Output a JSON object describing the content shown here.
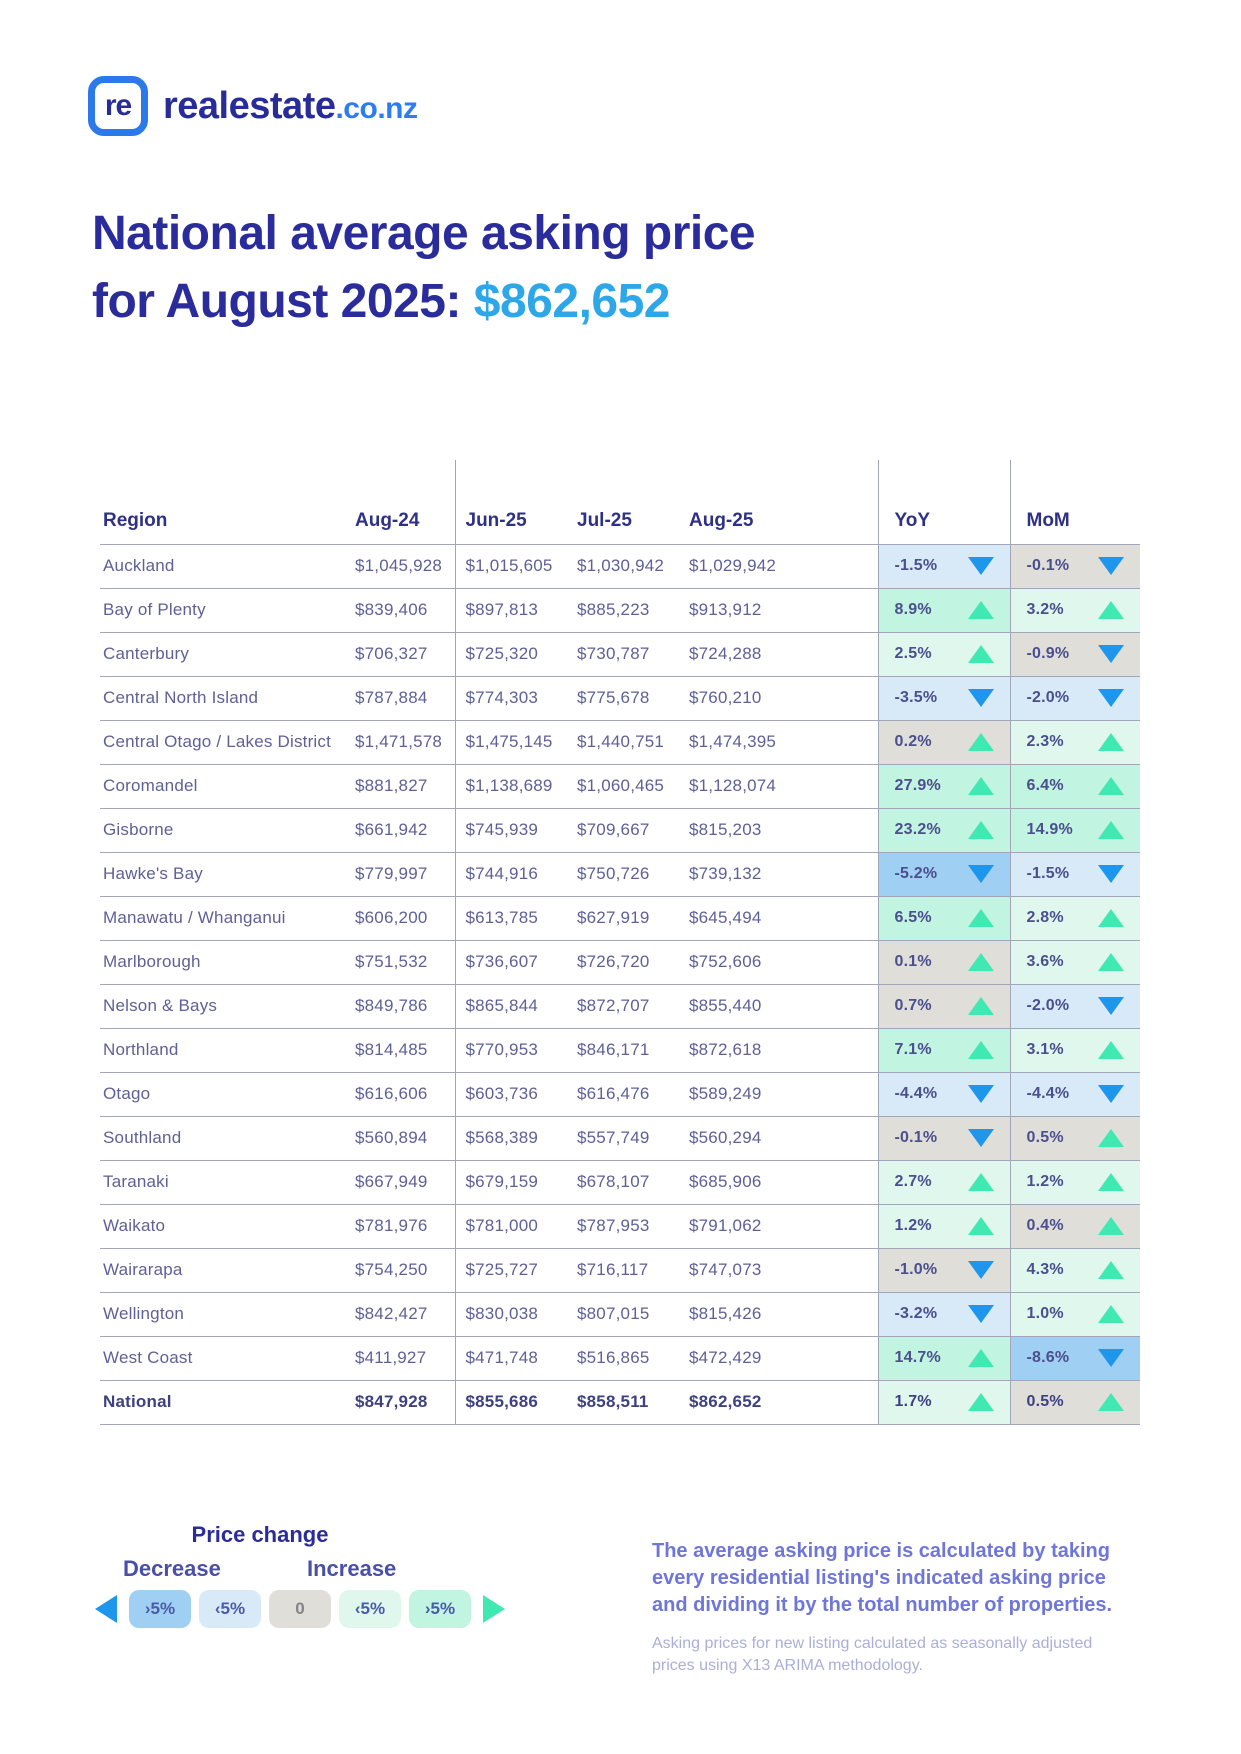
{
  "logo": {
    "mark": "re",
    "name": "realestate",
    "tld": ".co.nz"
  },
  "title": {
    "line1": "National average asking price",
    "line2_prefix": "for August 2025: ",
    "price": "$862,652"
  },
  "chart_data": {
    "type": "table",
    "title": "National average asking price for August 2025: $862,652",
    "columns": [
      "Region",
      "Aug-24",
      "Jun-25",
      "Jul-25",
      "Aug-25",
      "YoY",
      "MoM"
    ],
    "rows": [
      {
        "region": "Auckland",
        "aug24": "$1,045,928",
        "jun25": "$1,015,605",
        "jul25": "$1,030,942",
        "aug25": "$1,029,942",
        "yoy": {
          "value": "-1.5%",
          "dir": "down",
          "band": "dec-light"
        },
        "mom": {
          "value": "-0.1%",
          "dir": "down",
          "band": "zero"
        }
      },
      {
        "region": "Bay of Plenty",
        "aug24": "$839,406",
        "jun25": "$897,813",
        "jul25": "$885,223",
        "aug25": "$913,912",
        "yoy": {
          "value": "8.9%",
          "dir": "up",
          "band": "inc-strong"
        },
        "mom": {
          "value": "3.2%",
          "dir": "up",
          "band": "inc-light"
        }
      },
      {
        "region": "Canterbury",
        "aug24": "$706,327",
        "jun25": "$725,320",
        "jul25": "$730,787",
        "aug25": "$724,288",
        "yoy": {
          "value": "2.5%",
          "dir": "up",
          "band": "inc-light"
        },
        "mom": {
          "value": "-0.9%",
          "dir": "down",
          "band": "zero"
        }
      },
      {
        "region": "Central North Island",
        "aug24": "$787,884",
        "jun25": "$774,303",
        "jul25": "$775,678",
        "aug25": "$760,210",
        "yoy": {
          "value": "-3.5%",
          "dir": "down",
          "band": "dec-light"
        },
        "mom": {
          "value": "-2.0%",
          "dir": "down",
          "band": "dec-light"
        }
      },
      {
        "region": "Central Otago / Lakes District",
        "aug24": "$1,471,578",
        "jun25": "$1,475,145",
        "jul25": "$1,440,751",
        "aug25": "$1,474,395",
        "yoy": {
          "value": "0.2%",
          "dir": "up",
          "band": "zero"
        },
        "mom": {
          "value": "2.3%",
          "dir": "up",
          "band": "inc-light"
        }
      },
      {
        "region": "Coromandel",
        "aug24": "$881,827",
        "jun25": "$1,138,689",
        "jul25": "$1,060,465",
        "aug25": "$1,128,074",
        "yoy": {
          "value": "27.9%",
          "dir": "up",
          "band": "inc-strong"
        },
        "mom": {
          "value": "6.4%",
          "dir": "up",
          "band": "inc-strong"
        }
      },
      {
        "region": "Gisborne",
        "aug24": "$661,942",
        "jun25": "$745,939",
        "jul25": "$709,667",
        "aug25": "$815,203",
        "yoy": {
          "value": "23.2%",
          "dir": "up",
          "band": "inc-strong"
        },
        "mom": {
          "value": "14.9%",
          "dir": "up",
          "band": "inc-strong"
        }
      },
      {
        "region": "Hawke's Bay",
        "aug24": "$779,997",
        "jun25": "$744,916",
        "jul25": "$750,726",
        "aug25": "$739,132",
        "yoy": {
          "value": "-5.2%",
          "dir": "down",
          "band": "dec-strong"
        },
        "mom": {
          "value": "-1.5%",
          "dir": "down",
          "band": "dec-light"
        }
      },
      {
        "region": "Manawatu / Whanganui",
        "aug24": "$606,200",
        "jun25": "$613,785",
        "jul25": "$627,919",
        "aug25": "$645,494",
        "yoy": {
          "value": "6.5%",
          "dir": "up",
          "band": "inc-strong"
        },
        "mom": {
          "value": "2.8%",
          "dir": "up",
          "band": "inc-light"
        }
      },
      {
        "region": "Marlborough",
        "aug24": "$751,532",
        "jun25": "$736,607",
        "jul25": "$726,720",
        "aug25": "$752,606",
        "yoy": {
          "value": "0.1%",
          "dir": "up",
          "band": "zero"
        },
        "mom": {
          "value": "3.6%",
          "dir": "up",
          "band": "inc-light"
        }
      },
      {
        "region": "Nelson & Bays",
        "aug24": "$849,786",
        "jun25": "$865,844",
        "jul25": "$872,707",
        "aug25": "$855,440",
        "yoy": {
          "value": "0.7%",
          "dir": "up",
          "band": "zero"
        },
        "mom": {
          "value": "-2.0%",
          "dir": "down",
          "band": "dec-light"
        }
      },
      {
        "region": "Northland",
        "aug24": "$814,485",
        "jun25": "$770,953",
        "jul25": "$846,171",
        "aug25": "$872,618",
        "yoy": {
          "value": "7.1%",
          "dir": "up",
          "band": "inc-strong"
        },
        "mom": {
          "value": "3.1%",
          "dir": "up",
          "band": "inc-light"
        }
      },
      {
        "region": "Otago",
        "aug24": "$616,606",
        "jun25": "$603,736",
        "jul25": "$616,476",
        "aug25": "$589,249",
        "yoy": {
          "value": "-4.4%",
          "dir": "down",
          "band": "dec-light"
        },
        "mom": {
          "value": "-4.4%",
          "dir": "down",
          "band": "dec-light"
        }
      },
      {
        "region": "Southland",
        "aug24": "$560,894",
        "jun25": "$568,389",
        "jul25": "$557,749",
        "aug25": "$560,294",
        "yoy": {
          "value": "-0.1%",
          "dir": "down",
          "band": "zero"
        },
        "mom": {
          "value": "0.5%",
          "dir": "up",
          "band": "zero"
        }
      },
      {
        "region": "Taranaki",
        "aug24": "$667,949",
        "jun25": "$679,159",
        "jul25": "$678,107",
        "aug25": "$685,906",
        "yoy": {
          "value": "2.7%",
          "dir": "up",
          "band": "inc-light"
        },
        "mom": {
          "value": "1.2%",
          "dir": "up",
          "band": "inc-light"
        }
      },
      {
        "region": "Waikato",
        "aug24": "$781,976",
        "jun25": "$781,000",
        "jul25": "$787,953",
        "aug25": "$791,062",
        "yoy": {
          "value": "1.2%",
          "dir": "up",
          "band": "inc-light"
        },
        "mom": {
          "value": "0.4%",
          "dir": "up",
          "band": "zero"
        }
      },
      {
        "region": "Wairarapa",
        "aug24": "$754,250",
        "jun25": "$725,727",
        "jul25": "$716,117",
        "aug25": "$747,073",
        "yoy": {
          "value": "-1.0%",
          "dir": "down",
          "band": "zero"
        },
        "mom": {
          "value": "4.3%",
          "dir": "up",
          "band": "inc-light"
        }
      },
      {
        "region": "Wellington",
        "aug24": "$842,427",
        "jun25": "$830,038",
        "jul25": "$807,015",
        "aug25": "$815,426",
        "yoy": {
          "value": "-3.2%",
          "dir": "down",
          "band": "dec-light"
        },
        "mom": {
          "value": "1.0%",
          "dir": "up",
          "band": "inc-light"
        }
      },
      {
        "region": "West Coast",
        "aug24": "$411,927",
        "jun25": "$471,748",
        "jul25": "$516,865",
        "aug25": "$472,429",
        "yoy": {
          "value": "14.7%",
          "dir": "up",
          "band": "inc-strong"
        },
        "mom": {
          "value": "-8.6%",
          "dir": "down",
          "band": "dec-strong"
        }
      },
      {
        "region": "National",
        "bold": true,
        "aug24": "$847,928",
        "jun25": "$855,686",
        "jul25": "$858,511",
        "aug25": "$862,652",
        "yoy": {
          "value": "1.7%",
          "dir": "up",
          "band": "inc-light"
        },
        "mom": {
          "value": "0.5%",
          "dir": "up",
          "band": "zero"
        }
      }
    ]
  },
  "legend": {
    "title": "Price change",
    "decrease_label": "Decrease",
    "increase_label": "Increase",
    "pills": [
      {
        "label": "›5%",
        "band": "dec-strong"
      },
      {
        "label": "‹5%",
        "band": "dec-light"
      },
      {
        "label": "0",
        "band": "zero"
      },
      {
        "label": "‹5%",
        "band": "inc-light"
      },
      {
        "label": "›5%",
        "band": "inc-strong"
      }
    ]
  },
  "footnote": {
    "main": "The average asking price is calculated by taking every residential listing's indicated asking price and dividing it by the total number of properties.",
    "sub": "Asking prices for new listing calculated as seasonally adjusted prices using X13 ARIMA methodology."
  },
  "colors": {
    "title": "#2B2C9B",
    "price": "#2EA7E8",
    "band_bg": {
      "dec-strong": "#9FCFF2",
      "dec-light": "#D8E9F8",
      "zero": "#DFDED8",
      "inc-light": "#E0F7EE",
      "inc-strong": "#C1F4E1"
    },
    "arrow_up": "#40E9B2",
    "arrow_down": "#1D96EC"
  }
}
